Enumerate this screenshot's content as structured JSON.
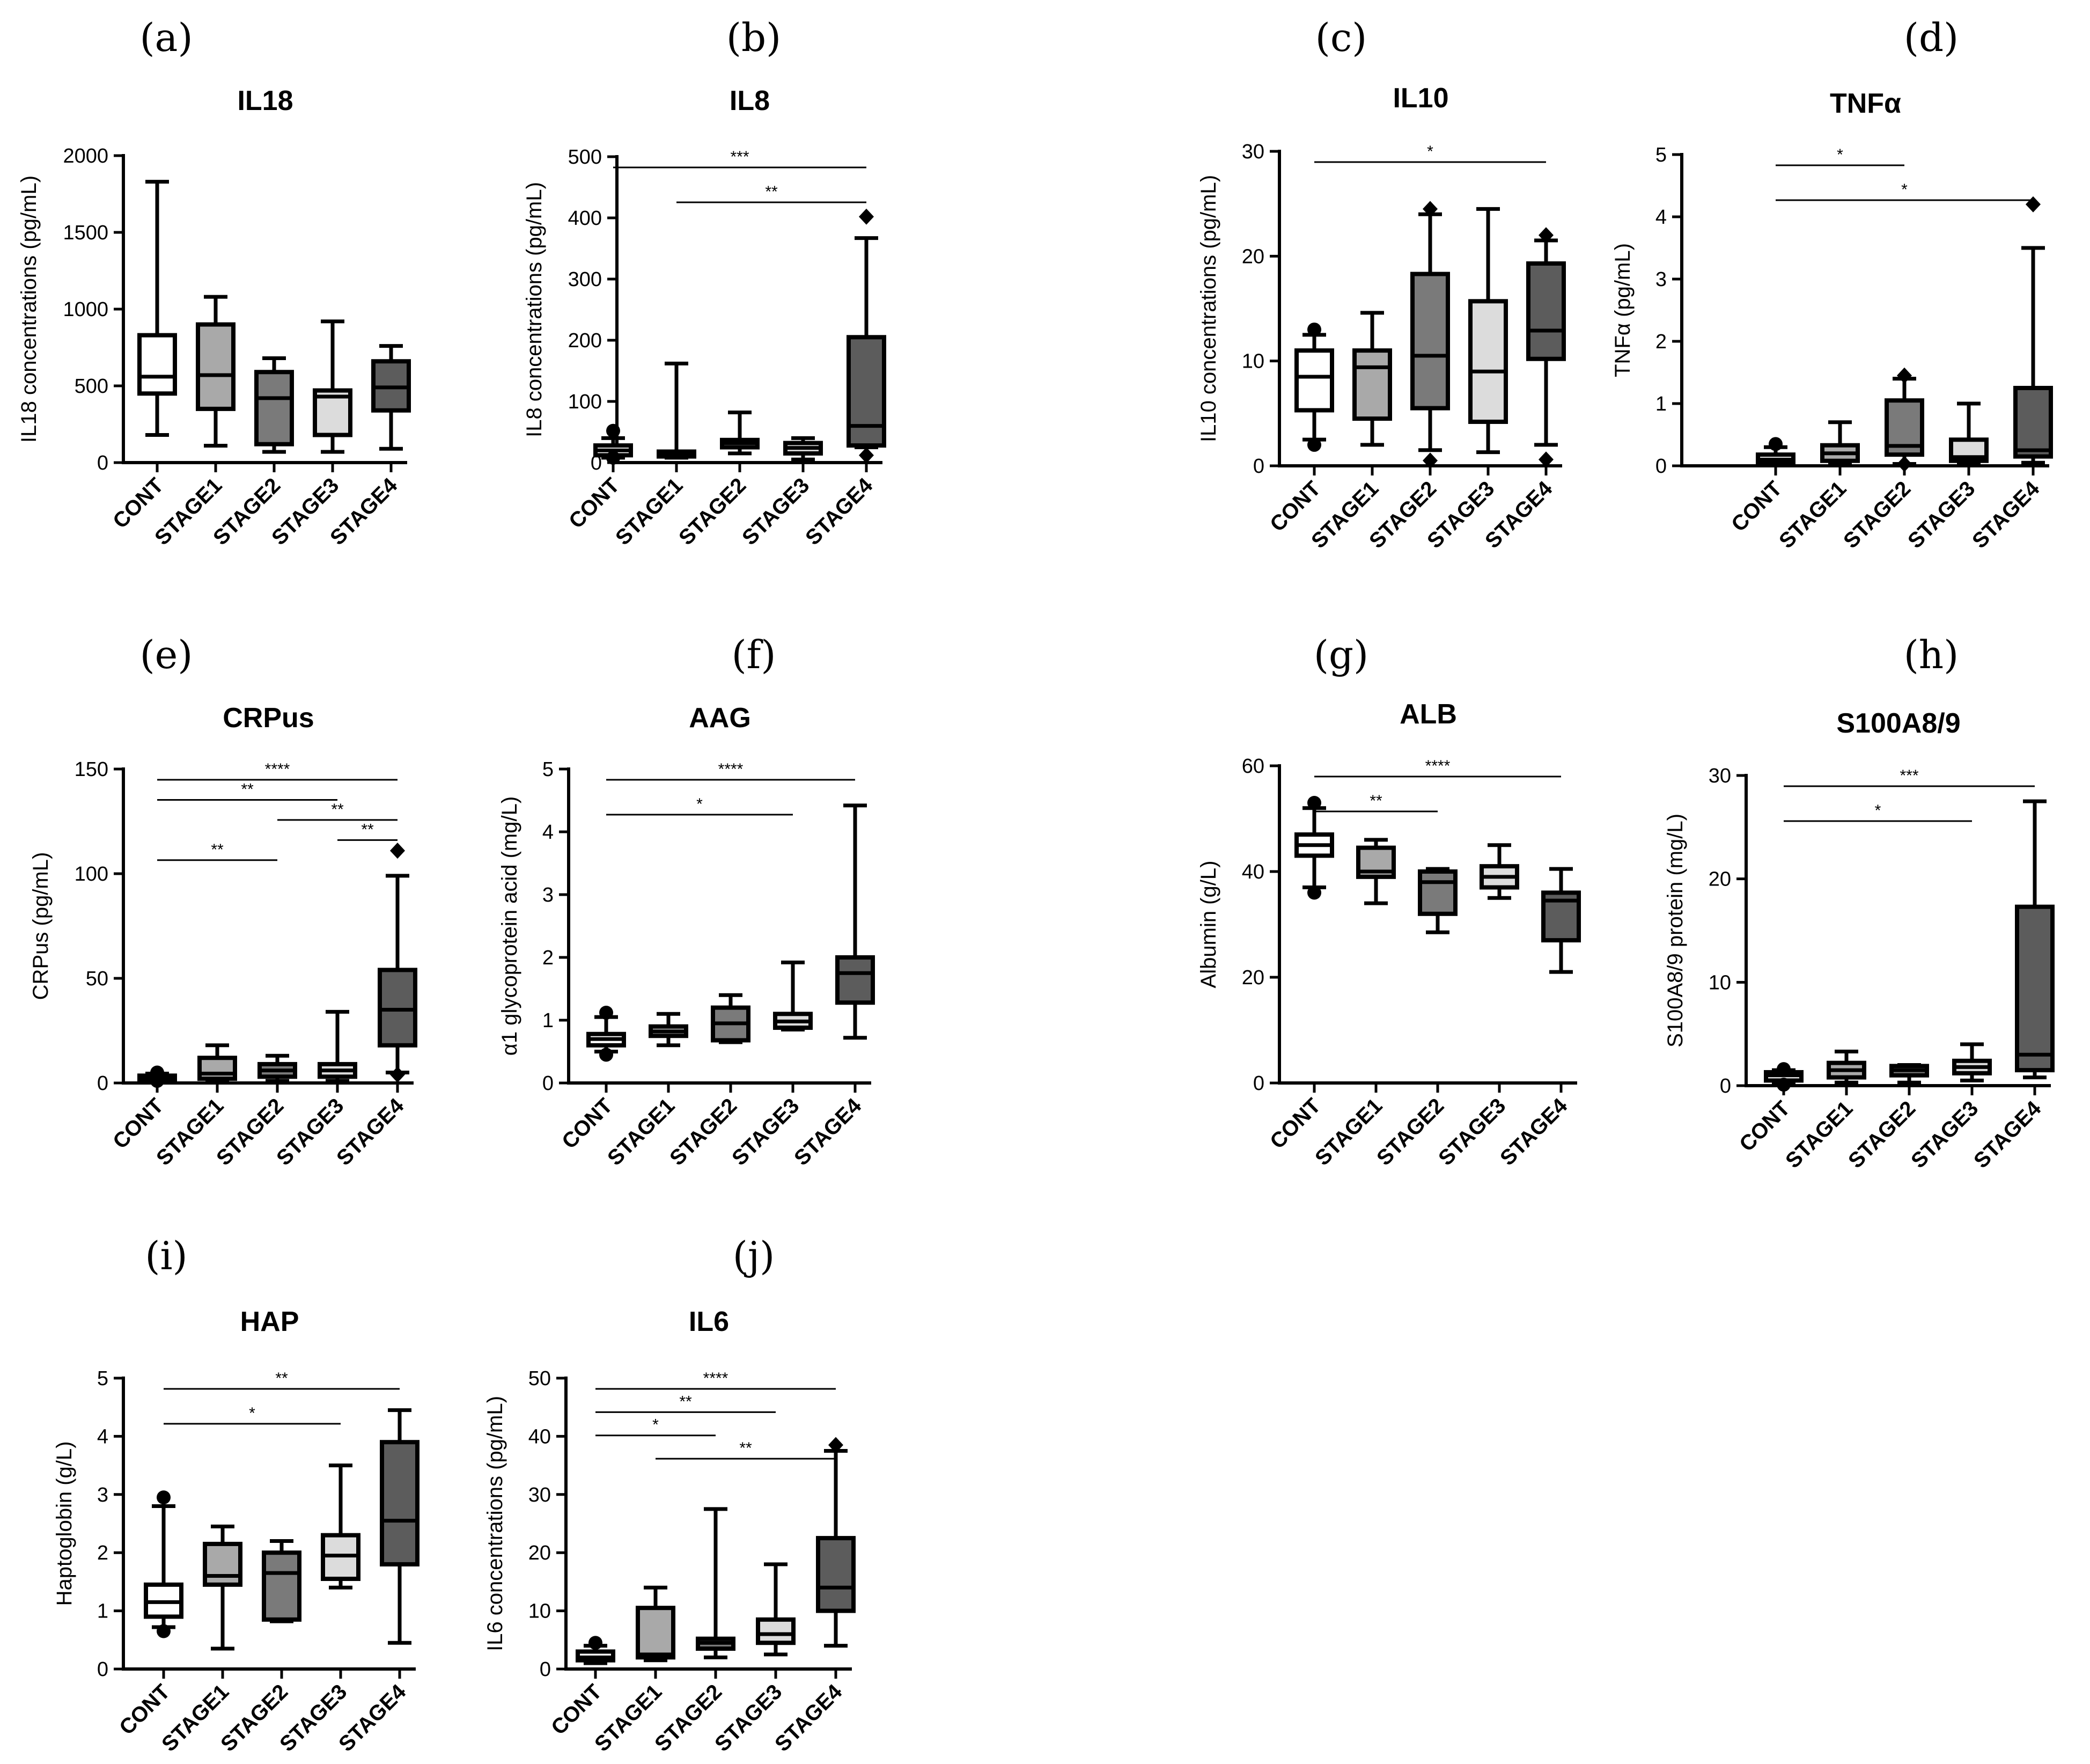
{
  "colors": {
    "CONT": "#ffffff",
    "STAGE1": "#a9a9a9",
    "STAGE2": "#7a7a7a",
    "STAGE3": "#dcdcdc",
    "STAGE4": "#5c5c5c"
  },
  "chart_data": [
    {
      "id": "a",
      "panel_label": "(a)",
      "type": "box",
      "title": "IL18",
      "ylabel": "IL18 concentrations (pg/mL)",
      "ylim": [
        0,
        2000
      ],
      "yticks": [
        0,
        500,
        1000,
        1500,
        2000
      ],
      "categories": [
        "CONT",
        "STAGE1",
        "STAGE2",
        "STAGE3",
        "STAGE4"
      ],
      "boxes": [
        {
          "min": 180,
          "q1": 450,
          "median": 560,
          "q3": 830,
          "max": 1830,
          "outliers": []
        },
        {
          "min": 110,
          "q1": 350,
          "median": 570,
          "q3": 900,
          "max": 1080,
          "outliers": []
        },
        {
          "min": 70,
          "q1": 120,
          "median": 420,
          "q3": 590,
          "max": 680,
          "outliers": []
        },
        {
          "min": 70,
          "q1": 180,
          "median": 430,
          "q3": 470,
          "max": 920,
          "outliers": []
        },
        {
          "min": 90,
          "q1": 340,
          "median": 490,
          "q3": 660,
          "max": 760,
          "outliers": []
        }
      ],
      "significance": []
    },
    {
      "id": "b",
      "panel_label": "(b)",
      "type": "box",
      "title": "IL8",
      "ylabel": "IL8 concentrations (pg/mL)",
      "ylim": [
        0,
        500
      ],
      "yticks": [
        0,
        100,
        200,
        300,
        400,
        500
      ],
      "categories": [
        "CONT",
        "STAGE1",
        "STAGE2",
        "STAGE3",
        "STAGE4"
      ],
      "boxes": [
        {
          "min": 8,
          "q1": 12,
          "median": 20,
          "q3": 28,
          "max": 40,
          "outliers": [
            52,
            8
          ]
        },
        {
          "min": 8,
          "q1": 10,
          "median": 14,
          "q3": 18,
          "max": 162,
          "outliers": []
        },
        {
          "min": 15,
          "q1": 25,
          "median": 32,
          "q3": 37,
          "max": 82,
          "outliers": []
        },
        {
          "min": 5,
          "q1": 15,
          "median": 24,
          "q3": 32,
          "max": 40,
          "outliers": []
        },
        {
          "min": 25,
          "q1": 28,
          "median": 60,
          "q3": 205,
          "max": 367,
          "outliers": [
            402,
            12
          ]
        }
      ],
      "significance": [
        {
          "from": 0,
          "to": 4,
          "label": "***"
        },
        {
          "from": 1,
          "to": 4,
          "label": "**"
        }
      ]
    },
    {
      "id": "c",
      "panel_label": "(c)",
      "type": "box",
      "title": "IL10",
      "ylabel": "IL10 concentrations (pg/mL)",
      "ylim": [
        0,
        30
      ],
      "yticks": [
        0,
        10,
        20,
        30
      ],
      "categories": [
        "CONT",
        "STAGE1",
        "STAGE2",
        "STAGE3",
        "STAGE4"
      ],
      "boxes": [
        {
          "min": 2.5,
          "q1": 5.3,
          "median": 8.5,
          "q3": 11,
          "max": 12.5,
          "outliers": [
            13,
            2
          ]
        },
        {
          "min": 2,
          "q1": 4.5,
          "median": 9.4,
          "q3": 11,
          "max": 14.6,
          "outliers": []
        },
        {
          "min": 1.5,
          "q1": 5.5,
          "median": 10.5,
          "q3": 18.3,
          "max": 24,
          "outliers": [
            24.5,
            0.5
          ]
        },
        {
          "min": 1.3,
          "q1": 4.2,
          "median": 9,
          "q3": 15.7,
          "max": 24.5,
          "outliers": []
        },
        {
          "min": 2,
          "q1": 10.2,
          "median": 12.9,
          "q3": 19.3,
          "max": 21.5,
          "outliers": [
            22,
            0.6
          ]
        }
      ],
      "significance": [
        {
          "from": 0,
          "to": 4,
          "label": "*"
        }
      ]
    },
    {
      "id": "d",
      "panel_label": "(d)",
      "type": "box",
      "title": "TNFα",
      "ylabel": "TNFα (pg/mL)",
      "ylim": [
        0,
        5
      ],
      "yticks": [
        0,
        1,
        2,
        3,
        4,
        5
      ],
      "categories": [
        "CONT",
        "STAGE1",
        "STAGE2",
        "STAGE3",
        "STAGE4"
      ],
      "boxes": [
        {
          "min": 0.02,
          "q1": 0.05,
          "median": 0.1,
          "q3": 0.18,
          "max": 0.3,
          "outliers": [
            0.35
          ]
        },
        {
          "min": 0.02,
          "q1": 0.08,
          "median": 0.2,
          "q3": 0.33,
          "max": 0.7,
          "outliers": []
        },
        {
          "min": 0.03,
          "q1": 0.18,
          "median": 0.32,
          "q3": 1.05,
          "max": 1.4,
          "outliers": [
            1.45,
            0.03
          ]
        },
        {
          "min": 0.02,
          "q1": 0.08,
          "median": 0.14,
          "q3": 0.42,
          "max": 1.0,
          "outliers": []
        },
        {
          "min": 0.05,
          "q1": 0.15,
          "median": 0.25,
          "q3": 1.25,
          "max": 3.5,
          "outliers": [
            4.2
          ]
        }
      ],
      "significance": [
        {
          "from": 0,
          "to": 2,
          "label": "*"
        },
        {
          "from": 0,
          "to": 4,
          "label": "*"
        }
      ]
    },
    {
      "id": "e",
      "panel_label": "(e)",
      "type": "box",
      "title": "CRPus",
      "ylabel": "CRPus (pg/mL)",
      "ylim": [
        0,
        150
      ],
      "yticks": [
        0,
        50,
        100,
        150
      ],
      "categories": [
        "CONT",
        "STAGE1",
        "STAGE2",
        "STAGE3",
        "STAGE4"
      ],
      "boxes": [
        {
          "min": 1,
          "q1": 1.5,
          "median": 2.5,
          "q3": 3.5,
          "max": 4.5,
          "outliers": [
            5,
            1
          ]
        },
        {
          "min": 1,
          "q1": 2,
          "median": 4.5,
          "q3": 12,
          "max": 18,
          "outliers": []
        },
        {
          "min": 1,
          "q1": 3,
          "median": 6,
          "q3": 9,
          "max": 13,
          "outliers": []
        },
        {
          "min": 1,
          "q1": 3,
          "median": 6,
          "q3": 9,
          "max": 34,
          "outliers": []
        },
        {
          "min": 5,
          "q1": 18,
          "median": 35,
          "q3": 54,
          "max": 99,
          "outliers": [
            111,
            4
          ]
        }
      ],
      "significance": [
        {
          "from": 0,
          "to": 4,
          "label": "****"
        },
        {
          "from": 0,
          "to": 3,
          "label": "**"
        },
        {
          "from": 2,
          "to": 4,
          "label": "**"
        },
        {
          "from": 3,
          "to": 4,
          "label": "**"
        },
        {
          "from": 0,
          "to": 2,
          "label": "**"
        }
      ]
    },
    {
      "id": "f",
      "panel_label": "(f)",
      "type": "box",
      "title": "AAG",
      "ylabel": "α1 glycoprotein acid (mg/L)",
      "ylim": [
        0,
        5
      ],
      "yticks": [
        0,
        1,
        2,
        3,
        4,
        5
      ],
      "categories": [
        "CONT",
        "STAGE1",
        "STAGE2",
        "STAGE3",
        "STAGE4"
      ],
      "boxes": [
        {
          "min": 0.5,
          "q1": 0.6,
          "median": 0.7,
          "q3": 0.78,
          "max": 1.05,
          "outliers": [
            1.12,
            0.45
          ]
        },
        {
          "min": 0.6,
          "q1": 0.75,
          "median": 0.82,
          "q3": 0.9,
          "max": 1.1,
          "outliers": []
        },
        {
          "min": 0.65,
          "q1": 0.68,
          "median": 0.95,
          "q3": 1.2,
          "max": 1.4,
          "outliers": []
        },
        {
          "min": 0.85,
          "q1": 0.88,
          "median": 0.98,
          "q3": 1.1,
          "max": 1.92,
          "outliers": []
        },
        {
          "min": 0.72,
          "q1": 1.28,
          "median": 1.75,
          "q3": 2.0,
          "max": 4.42,
          "outliers": []
        }
      ],
      "significance": [
        {
          "from": 0,
          "to": 4,
          "label": "****"
        },
        {
          "from": 0,
          "to": 3,
          "label": "*"
        }
      ]
    },
    {
      "id": "g",
      "panel_label": "(g)",
      "type": "box",
      "title": "ALB",
      "ylabel": "Albumin (g/L)",
      "ylim": [
        0,
        60
      ],
      "yticks": [
        0,
        20,
        40,
        60
      ],
      "categories": [
        "CONT",
        "STAGE1",
        "STAGE2",
        "STAGE3",
        "STAGE4"
      ],
      "boxes": [
        {
          "min": 37,
          "q1": 43,
          "median": 45,
          "q3": 47,
          "max": 52,
          "outliers": [
            53,
            36
          ]
        },
        {
          "min": 34,
          "q1": 39,
          "median": 40,
          "q3": 44.5,
          "max": 46,
          "outliers": []
        },
        {
          "min": 28.5,
          "q1": 32,
          "median": 38,
          "q3": 40,
          "max": 40.5,
          "outliers": []
        },
        {
          "min": 35,
          "q1": 37,
          "median": 39,
          "q3": 41,
          "max": 45,
          "outliers": []
        },
        {
          "min": 21,
          "q1": 27,
          "median": 34.5,
          "q3": 36,
          "max": 40.5,
          "outliers": []
        }
      ],
      "significance": [
        {
          "from": 0,
          "to": 4,
          "label": "****"
        },
        {
          "from": 0,
          "to": 2,
          "label": "**"
        }
      ]
    },
    {
      "id": "h",
      "panel_label": "(h)",
      "type": "box",
      "title": "S100A8/9",
      "ylabel": "S100A8/9 protein (mg/L)",
      "ylim": [
        0,
        30
      ],
      "yticks": [
        0,
        10,
        20,
        30
      ],
      "categories": [
        "CONT",
        "STAGE1",
        "STAGE2",
        "STAGE3",
        "STAGE4"
      ],
      "boxes": [
        {
          "min": 0.2,
          "q1": 0.5,
          "median": 1.0,
          "q3": 1.3,
          "max": 1.5,
          "outliers": [
            1.6,
            0.1
          ]
        },
        {
          "min": 0.3,
          "q1": 0.8,
          "median": 1.5,
          "q3": 2.2,
          "max": 3.3,
          "outliers": []
        },
        {
          "min": 0.3,
          "q1": 1.0,
          "median": 1.5,
          "q3": 1.9,
          "max": 2.0,
          "outliers": []
        },
        {
          "min": 0.5,
          "q1": 1.2,
          "median": 1.8,
          "q3": 2.4,
          "max": 4.0,
          "outliers": []
        },
        {
          "min": 0.8,
          "q1": 1.5,
          "median": 3.0,
          "q3": 17.3,
          "max": 27.5,
          "outliers": []
        }
      ],
      "significance": [
        {
          "from": 0,
          "to": 4,
          "label": "***"
        },
        {
          "from": 0,
          "to": 3,
          "label": "*"
        }
      ]
    },
    {
      "id": "i",
      "panel_label": "(i)",
      "type": "box",
      "title": "HAP",
      "ylabel": "Haptoglobin (g/L)",
      "ylim": [
        0,
        5
      ],
      "yticks": [
        0,
        1,
        2,
        3,
        4,
        5
      ],
      "categories": [
        "CONT",
        "STAGE1",
        "STAGE2",
        "STAGE3",
        "STAGE4"
      ],
      "boxes": [
        {
          "min": 0.72,
          "q1": 0.9,
          "median": 1.15,
          "q3": 1.45,
          "max": 2.8,
          "outliers": [
            2.95,
            0.65
          ]
        },
        {
          "min": 0.35,
          "q1": 1.45,
          "median": 1.6,
          "q3": 2.15,
          "max": 2.45,
          "outliers": []
        },
        {
          "min": 0.82,
          "q1": 0.85,
          "median": 1.65,
          "q3": 2.0,
          "max": 2.2,
          "outliers": []
        },
        {
          "min": 1.4,
          "q1": 1.55,
          "median": 1.95,
          "q3": 2.3,
          "max": 3.5,
          "outliers": []
        },
        {
          "min": 0.45,
          "q1": 1.8,
          "median": 2.55,
          "q3": 3.9,
          "max": 4.45,
          "outliers": []
        }
      ],
      "significance": [
        {
          "from": 0,
          "to": 4,
          "label": "**"
        },
        {
          "from": 0,
          "to": 3,
          "label": "*"
        }
      ]
    },
    {
      "id": "j",
      "panel_label": "(j)",
      "type": "box",
      "title": "IL6",
      "ylabel": "IL6 concentrations (pg/mL)",
      "ylim": [
        0,
        50
      ],
      "yticks": [
        0,
        10,
        20,
        30,
        40,
        50
      ],
      "categories": [
        "CONT",
        "STAGE1",
        "STAGE2",
        "STAGE3",
        "STAGE4"
      ],
      "boxes": [
        {
          "min": 1,
          "q1": 1.5,
          "median": 2,
          "q3": 3,
          "max": 4,
          "outliers": [
            4.5
          ]
        },
        {
          "min": 1.5,
          "q1": 2,
          "median": 2.5,
          "q3": 10.5,
          "max": 14,
          "outliers": []
        },
        {
          "min": 2,
          "q1": 3.5,
          "median": 4.5,
          "q3": 5.2,
          "max": 27.5,
          "outliers": []
        },
        {
          "min": 2.5,
          "q1": 4.5,
          "median": 6,
          "q3": 8.5,
          "max": 18,
          "outliers": []
        },
        {
          "min": 4,
          "q1": 10,
          "median": 14,
          "q3": 22.5,
          "max": 37.5,
          "outliers": [
            38.5
          ]
        }
      ],
      "significance": [
        {
          "from": 0,
          "to": 4,
          "label": "****"
        },
        {
          "from": 0,
          "to": 3,
          "label": "**"
        },
        {
          "from": 0,
          "to": 2,
          "label": "*"
        },
        {
          "from": 1,
          "to": 4,
          "label": "**"
        }
      ]
    }
  ]
}
